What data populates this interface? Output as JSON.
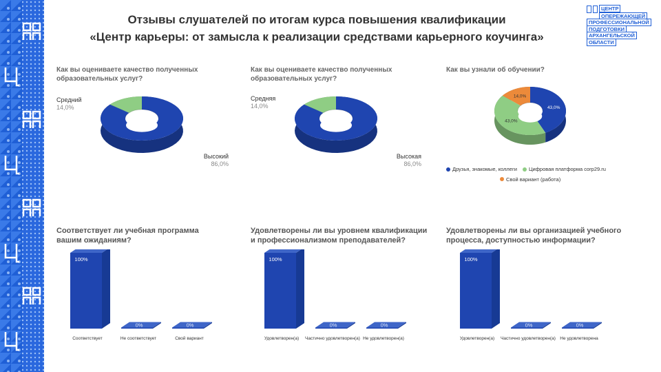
{
  "title": {
    "line1": "Отзывы слушателей по итогам курса повышения квалификации",
    "line2": "«Центр карьеры: от замысла к реализации средствами карьерного коучинга»"
  },
  "logo": {
    "lines": [
      "ЦЕНТР",
      "ОПЕРЕЖАЮЩЕЙ",
      "ПРОФЕССИОНАЛЬНОЙ",
      "ПОДГОТОВКИ",
      "АРХАНГЕЛЬСКОЙ",
      "ОБЛАСТИ"
    ]
  },
  "colors": {
    "blue": "#1f45b0",
    "green": "#8fcd84",
    "orange": "#ec8a3a",
    "stripe": "#1f5fd6"
  },
  "chart_data": [
    {
      "type": "pie",
      "title": "Как вы оцениваете качество полученных образовательных услуг?",
      "labels": [
        "Высокий",
        "Средний"
      ],
      "values": [
        86.0,
        14.0
      ],
      "value_labels": [
        "86,0%",
        "14,0%"
      ],
      "colors": [
        "#1f45b0",
        "#8fcd84"
      ],
      "donut": true
    },
    {
      "type": "pie",
      "title": "Как вы оцениваете качество полученных образовательных услуг?",
      "labels": [
        "Высокая",
        "Средняя"
      ],
      "values": [
        86.0,
        14.0
      ],
      "value_labels": [
        "86,0%",
        "14,0%"
      ],
      "colors": [
        "#1f45b0",
        "#8fcd84"
      ],
      "donut": true
    },
    {
      "type": "pie",
      "title": "Как вы узнали об обучении?",
      "labels": [
        "Друзья, знакомые, коллеги",
        "Цифровая платформа corp29.ru",
        "Свой вариант (работа)"
      ],
      "values": [
        43.0,
        43.0,
        14.0
      ],
      "value_labels": [
        "43,0%",
        "43,0%",
        "14,0%"
      ],
      "colors": [
        "#1f45b0",
        "#8fcd84",
        "#ec8a3a"
      ],
      "donut": true,
      "legend": "bottom"
    },
    {
      "type": "bar",
      "title": "Соответствует ли учебная программа вашим ожиданиям?",
      "categories": [
        "Соответствует",
        "Не соответствует",
        "Свой вариант"
      ],
      "values": [
        100,
        0,
        0
      ],
      "value_labels": [
        "100%",
        "0%",
        "0%"
      ],
      "ylim": [
        0,
        100
      ]
    },
    {
      "type": "bar",
      "title": "Удовлетворены ли вы уровнем квалификации и профессионализмом преподавателей?",
      "categories": [
        "Удовлетворен(а)",
        "Частично удовлетворен(а)",
        "Не удовлетворен(а)"
      ],
      "values": [
        100,
        0,
        0
      ],
      "value_labels": [
        "100%",
        "0%",
        "0%"
      ],
      "ylim": [
        0,
        100
      ]
    },
    {
      "type": "bar",
      "title": "Удовлетворены ли вы организацией учебного процесса, доступностью информации?",
      "categories": [
        "Удовлетворен(а)",
        "Частично удовлетворен(а)",
        "Не удовлетворена"
      ],
      "values": [
        100,
        0,
        0
      ],
      "value_labels": [
        "100%",
        "0%",
        "0%"
      ],
      "ylim": [
        0,
        100
      ]
    }
  ]
}
